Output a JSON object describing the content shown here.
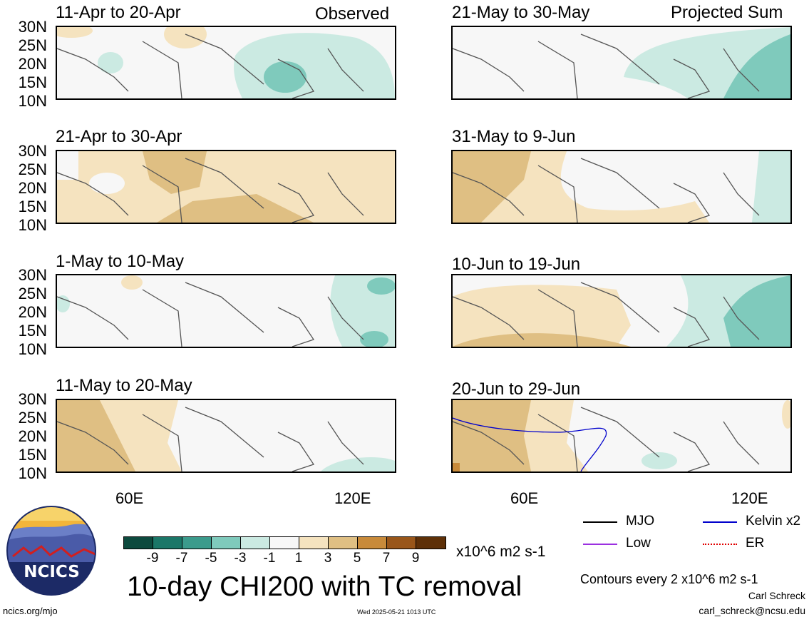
{
  "header": {
    "left_corner": "Observed",
    "right_corner": "Projected Sum"
  },
  "panels": [
    {
      "title": "11-Apr to 20-Apr"
    },
    {
      "title": "21-Apr to 30-Apr"
    },
    {
      "title": "1-May to 10-May"
    },
    {
      "title": "11-May to 20-May"
    },
    {
      "title": "21-May to 30-May"
    },
    {
      "title": "31-May to 9-Jun"
    },
    {
      "title": "10-Jun to 19-Jun"
    },
    {
      "title": "20-Jun to 29-Jun"
    }
  ],
  "lat_labels": [
    "30N",
    "25N",
    "20N",
    "15N",
    "10N"
  ],
  "lon_labels": [
    "60E",
    "120E"
  ],
  "colorbar": {
    "colors": [
      "#0d4a3e",
      "#1b7768",
      "#3b9b8c",
      "#7fcabc",
      "#cbeae2",
      "#f7f7f7",
      "#f5e3bf",
      "#dfbf83",
      "#c88a3a",
      "#99561a",
      "#5e3008"
    ],
    "labels": [
      "-9",
      "-7",
      "-5",
      "-3",
      "-1",
      "1",
      "3",
      "5",
      "7",
      "9"
    ],
    "units": "x10^6 m2 s-1"
  },
  "legend": [
    {
      "label": "MJO",
      "color": "#000000"
    },
    {
      "label": "Kelvin x2",
      "color": "#0000cc"
    },
    {
      "label": "Low",
      "color": "#9b30e0"
    },
    {
      "label": "ER",
      "color": "#e00000"
    }
  ],
  "main_title": "10-day CHI200 with TC removal",
  "contour_note": "Contours every 2 x10^6 m2 s-1",
  "author": "Carl Schreck",
  "email": "carl_schreck@ncsu.edu",
  "site": "ncics.org/mjo",
  "timestamp": "Wed 2025-05-21 1013 UTC",
  "logo_text": "NCICS"
}
